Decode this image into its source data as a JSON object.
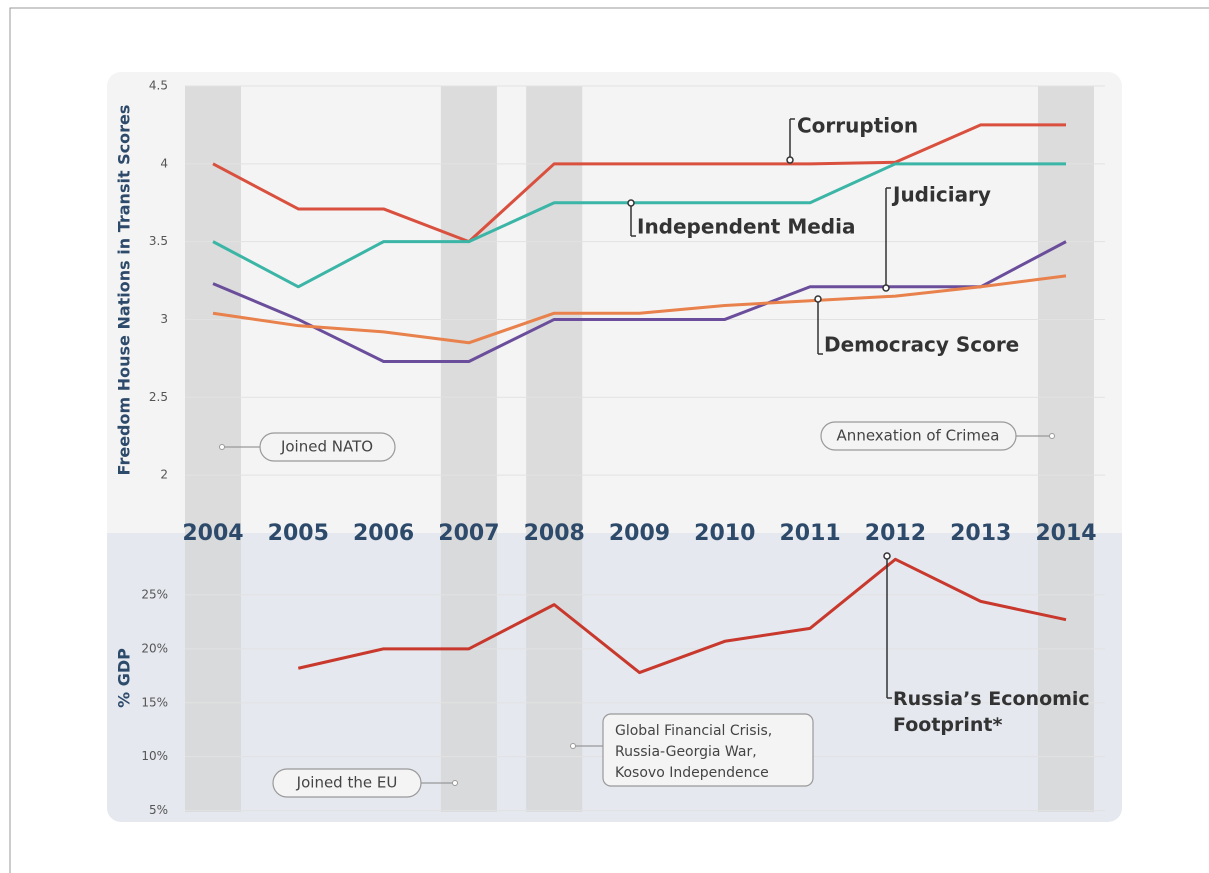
{
  "chart_data": [
    {
      "type": "line",
      "y_label": "Freedom House Nations in Transit Scores",
      "categories": [
        "2004",
        "2005",
        "2006",
        "2007",
        "2008",
        "2009",
        "2010",
        "2011",
        "2012",
        "2013",
        "2014"
      ],
      "ylim": [
        1.75,
        4.5
      ],
      "yticks": [
        2,
        2.5,
        3,
        3.5,
        4,
        4.5
      ],
      "grid": true,
      "highlighted": [
        0,
        3,
        4,
        10
      ],
      "series": [
        {
          "name": "Corruption",
          "color": "#d9503f",
          "values": [
            4.0,
            3.71,
            3.71,
            3.5,
            4.0,
            4.0,
            4.0,
            4.0,
            4.01,
            4.25,
            4.25
          ]
        },
        {
          "name": "Independent Media",
          "color": "#3bb5a6",
          "values": [
            3.5,
            3.21,
            3.5,
            3.5,
            3.75,
            3.75,
            3.75,
            3.75,
            4.0,
            4.0,
            4.0
          ]
        },
        {
          "name": "Judiciary",
          "color": "#6b4e9b",
          "values": [
            3.23,
            3.0,
            2.73,
            2.73,
            3.0,
            3.0,
            3.0,
            3.21,
            3.21,
            3.21,
            3.5
          ]
        },
        {
          "name": "Democracy Score",
          "color": "#e8814b",
          "values": [
            3.04,
            2.96,
            2.92,
            2.85,
            3.04,
            3.04,
            3.09,
            3.12,
            3.15,
            3.21,
            3.28
          ]
        }
      ],
      "annotations": [
        "Joined NATO",
        "Annexation of Crimea"
      ]
    },
    {
      "type": "line",
      "y_label": "% GDP",
      "ylim": [
        4.5,
        30.5
      ],
      "yticks": [
        {
          "value": 5,
          "label": "5%"
        },
        {
          "value": 10,
          "label": "10%"
        },
        {
          "value": 15,
          "label": "15%"
        },
        {
          "value": 20,
          "label": "20%"
        },
        {
          "value": 25,
          "label": "25%"
        }
      ],
      "grid": true,
      "series": [
        {
          "name": "Russia’s Economic Footprint*",
          "color": "#c8382c",
          "values": [
            null,
            18.2,
            20.0,
            20.0,
            24.1,
            17.8,
            20.7,
            21.9,
            28.3,
            24.4,
            22.7
          ]
        }
      ],
      "annotations": [
        "Joined the EU",
        [
          "Global Financial Crisis,",
          "Russia-Georgia War,",
          "Kosovo Independence"
        ]
      ]
    }
  ]
}
